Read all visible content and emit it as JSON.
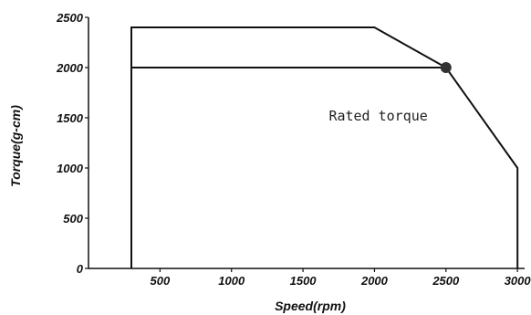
{
  "chart_data": {
    "type": "line",
    "xlabel": "Speed(rpm)",
    "ylabel": "Torque(g-cm)",
    "xlim": [
      0,
      3050
    ],
    "ylim": [
      0,
      2500
    ],
    "x_ticks": [
      500,
      1000,
      1500,
      2000,
      2500,
      3000
    ],
    "y_ticks": [
      0,
      500,
      1000,
      1500,
      2000,
      2500
    ],
    "series": [
      {
        "values_xy": [
          [
            300,
            0
          ],
          [
            300,
            2400
          ],
          [
            2000,
            2400
          ],
          [
            2500,
            2000
          ],
          [
            3000,
            1000
          ],
          [
            3000,
            0
          ]
        ],
        "color": "#111111"
      },
      {
        "values_xy": [
          [
            300,
            2000
          ],
          [
            2500,
            2000
          ]
        ],
        "color": "#111111"
      }
    ],
    "marker": {
      "x": 2500,
      "y": 2000,
      "color": "#333333"
    },
    "annotations": [
      {
        "text": "Rated torque",
        "x": 2000,
        "y": 1500
      }
    ],
    "grid": false
  }
}
